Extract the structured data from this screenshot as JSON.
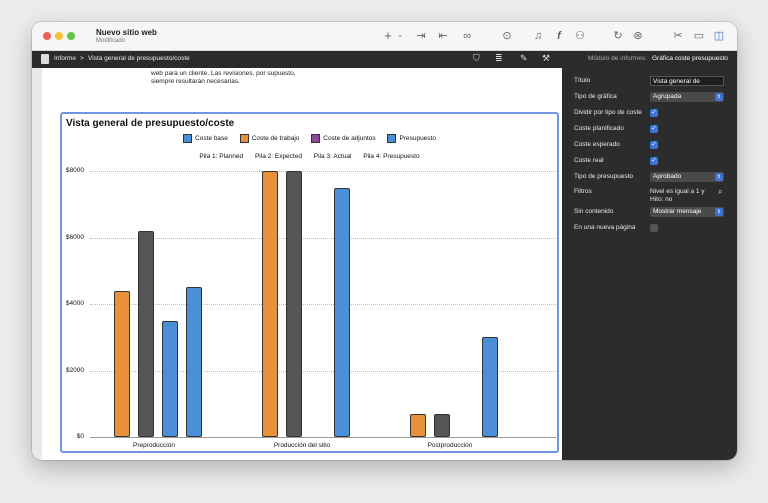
{
  "window": {
    "title": "Nuevo sitio web",
    "subtitle": "Modificado"
  },
  "toolbar_icons": [
    "plus-icon",
    "chevron-down-icon",
    "indent-icon",
    "outdent-icon",
    "link-icon",
    "more-icon",
    "bell-icon",
    "function-icon",
    "user-icon",
    "refresh-icon",
    "compass-icon",
    "tools-icon",
    "panel-bottom-icon",
    "panel-right-icon"
  ],
  "breadcrumb": {
    "root": "Informe",
    "separator": ">",
    "current": "Vista general de presupuesto/coste"
  },
  "inspector_header": {
    "label": "Módulo de informes:",
    "value": "Gráfica coste presupuesto"
  },
  "intro_text": {
    "line1": "web para un cliente. Las revisiones, por supuesto,",
    "line2": "siempre resultarán necesarias."
  },
  "chart_data": {
    "type": "bar",
    "title": "Vista general de presupuesto/coste",
    "legend": [
      {
        "name": "Coste base",
        "color": "#4a8fd8"
      },
      {
        "name": "Coste de trabajo",
        "color": "#e8903a"
      },
      {
        "name": "Coste de adjuntos",
        "color": "#8a4a9a"
      },
      {
        "name": "Presupuesto",
        "color": "#4a8fd8"
      }
    ],
    "stacks": [
      {
        "label": "Pila 1:",
        "value": "Planned"
      },
      {
        "label": "Pila 2:",
        "value": "Expected"
      },
      {
        "label": "Pila 3:",
        "value": "Actual"
      },
      {
        "label": "Pila 4:",
        "value": "Presupuesto"
      }
    ],
    "yticks": [
      "$8000",
      "$6000",
      "$4000",
      "$2000",
      "$0"
    ],
    "ylim": [
      0,
      8000
    ],
    "categories": [
      "Preproducción",
      "Producción del sitio",
      "Postproducción"
    ],
    "bars": [
      {
        "category": 0,
        "stack": 0,
        "value": 4400,
        "color": "#e8903a"
      },
      {
        "category": 0,
        "stack": 1,
        "value": 6200,
        "color": "#555555"
      },
      {
        "category": 0,
        "stack": 2,
        "value": 3500,
        "color": "#4a8fd8"
      },
      {
        "category": 0,
        "stack": 3,
        "value": 4500,
        "color": "#4a8fd8"
      },
      {
        "category": 1,
        "stack": 0,
        "value": 8000,
        "color": "#e8903a"
      },
      {
        "category": 1,
        "stack": 1,
        "value": 8000,
        "color": "#555555"
      },
      {
        "category": 1,
        "stack": 3,
        "value": 7500,
        "color": "#4a8fd8"
      },
      {
        "category": 2,
        "stack": 0,
        "value": 700,
        "color": "#e8903a"
      },
      {
        "category": 2,
        "stack": 1,
        "value": 700,
        "color": "#555555"
      },
      {
        "category": 2,
        "stack": 3,
        "value": 3000,
        "color": "#4a8fd8"
      }
    ]
  },
  "inspector": {
    "rows": [
      {
        "label": "Título",
        "kind": "input",
        "value": "Vista general de"
      },
      {
        "label": "Tipo de gráfica",
        "kind": "select",
        "value": "Agrupada"
      },
      {
        "label": "Dividir por tipo de coste",
        "kind": "check",
        "checked": true
      },
      {
        "label": "Coste planificado",
        "kind": "check",
        "checked": true
      },
      {
        "label": "Coste esperado",
        "kind": "check",
        "checked": true
      },
      {
        "label": "Coste real",
        "kind": "check",
        "checked": true
      },
      {
        "label": "Tipo de presupuesto",
        "kind": "select",
        "value": "Aprobado"
      },
      {
        "label": "Filtros",
        "kind": "text",
        "value": "Nivel es igual a 1 y",
        "value2": "Hito: no"
      },
      {
        "label": "Sin contenido",
        "kind": "select",
        "value": "Mostrar mensaje"
      },
      {
        "label": "En una nueva página",
        "kind": "check",
        "checked": false
      }
    ]
  }
}
